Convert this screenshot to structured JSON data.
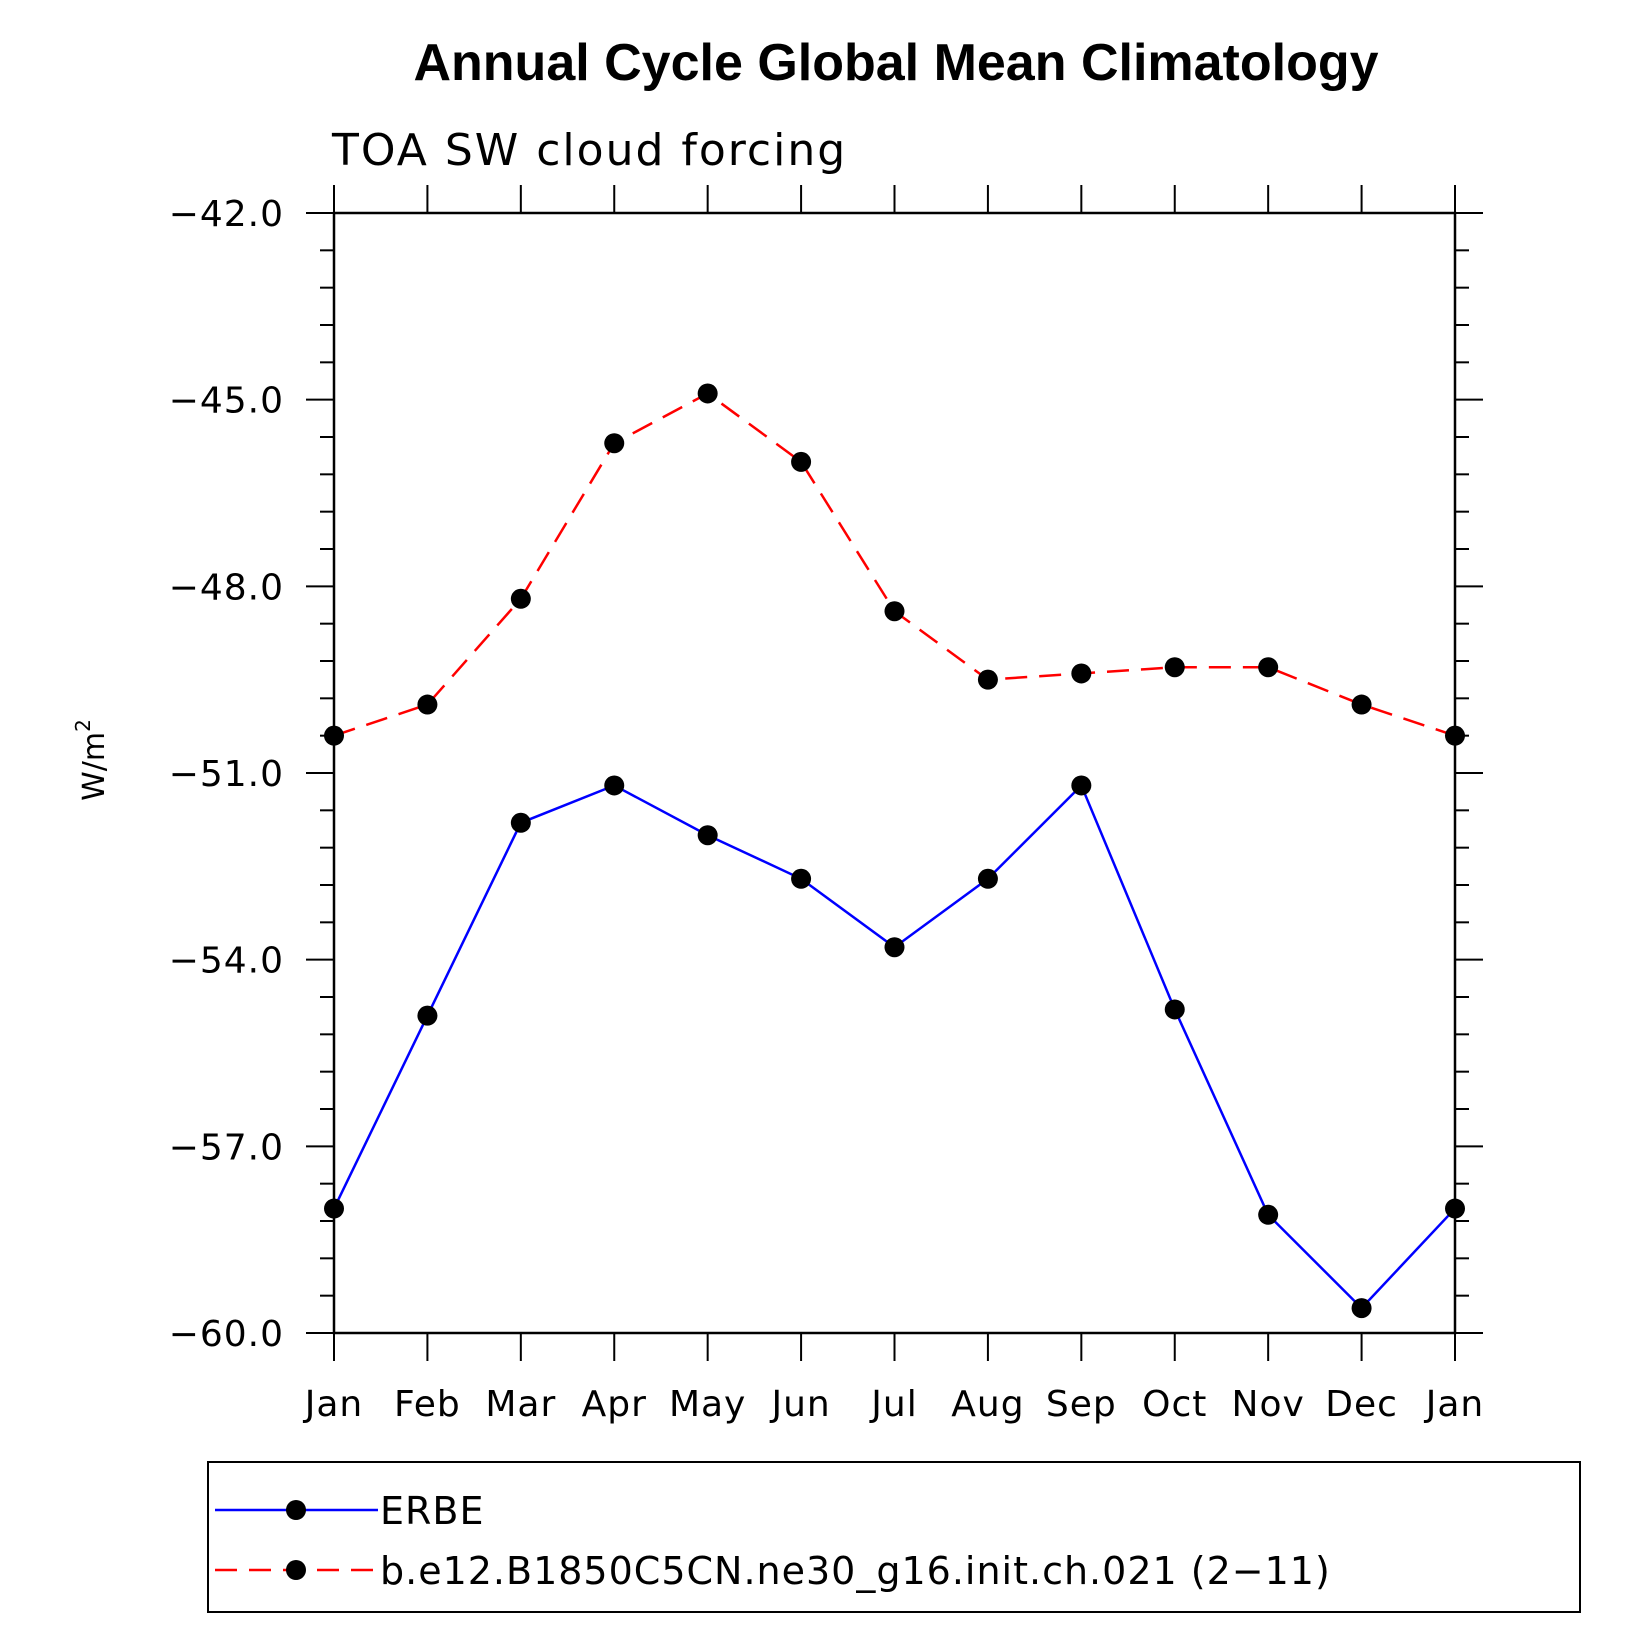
{
  "chart_data": {
    "type": "line",
    "title": "Annual Cycle Global Mean Climatology",
    "subtitle": "TOA SW cloud forcing",
    "ylabel": "W/m",
    "ylabel_sup": "2",
    "ylim": [
      -60.0,
      -42.0
    ],
    "yticks": [
      -42.0,
      -45.0,
      -48.0,
      -51.0,
      -54.0,
      -57.0,
      -60.0
    ],
    "ytick_labels": [
      "−42.0",
      "−45.0",
      "−48.0",
      "−51.0",
      "−54.0",
      "−57.0",
      "−60.0"
    ],
    "categories": [
      "Jan",
      "Feb",
      "Mar",
      "Apr",
      "May",
      "Jun",
      "Jul",
      "Aug",
      "Sep",
      "Oct",
      "Nov",
      "Dec",
      "Jan"
    ],
    "grid": false,
    "legend_position": "bottom",
    "series": [
      {
        "name": "ERBE",
        "color": "#0000ff",
        "dash": "solid",
        "values": [
          -58.0,
          -54.9,
          -51.8,
          -51.2,
          -52.0,
          -52.7,
          -53.8,
          -52.7,
          -51.2,
          -54.8,
          -58.1,
          -59.6,
          -58.0
        ]
      },
      {
        "name": "b.e12.B1850C5CN.ne30_g16.init.ch.021 (2−11)",
        "color": "#ff0000",
        "dash": "dashed",
        "values": [
          -50.4,
          -49.9,
          -48.2,
          -45.7,
          -44.9,
          -46.0,
          -48.4,
          -49.5,
          -49.4,
          -49.3,
          -49.3,
          -49.9,
          -50.4
        ]
      }
    ]
  }
}
